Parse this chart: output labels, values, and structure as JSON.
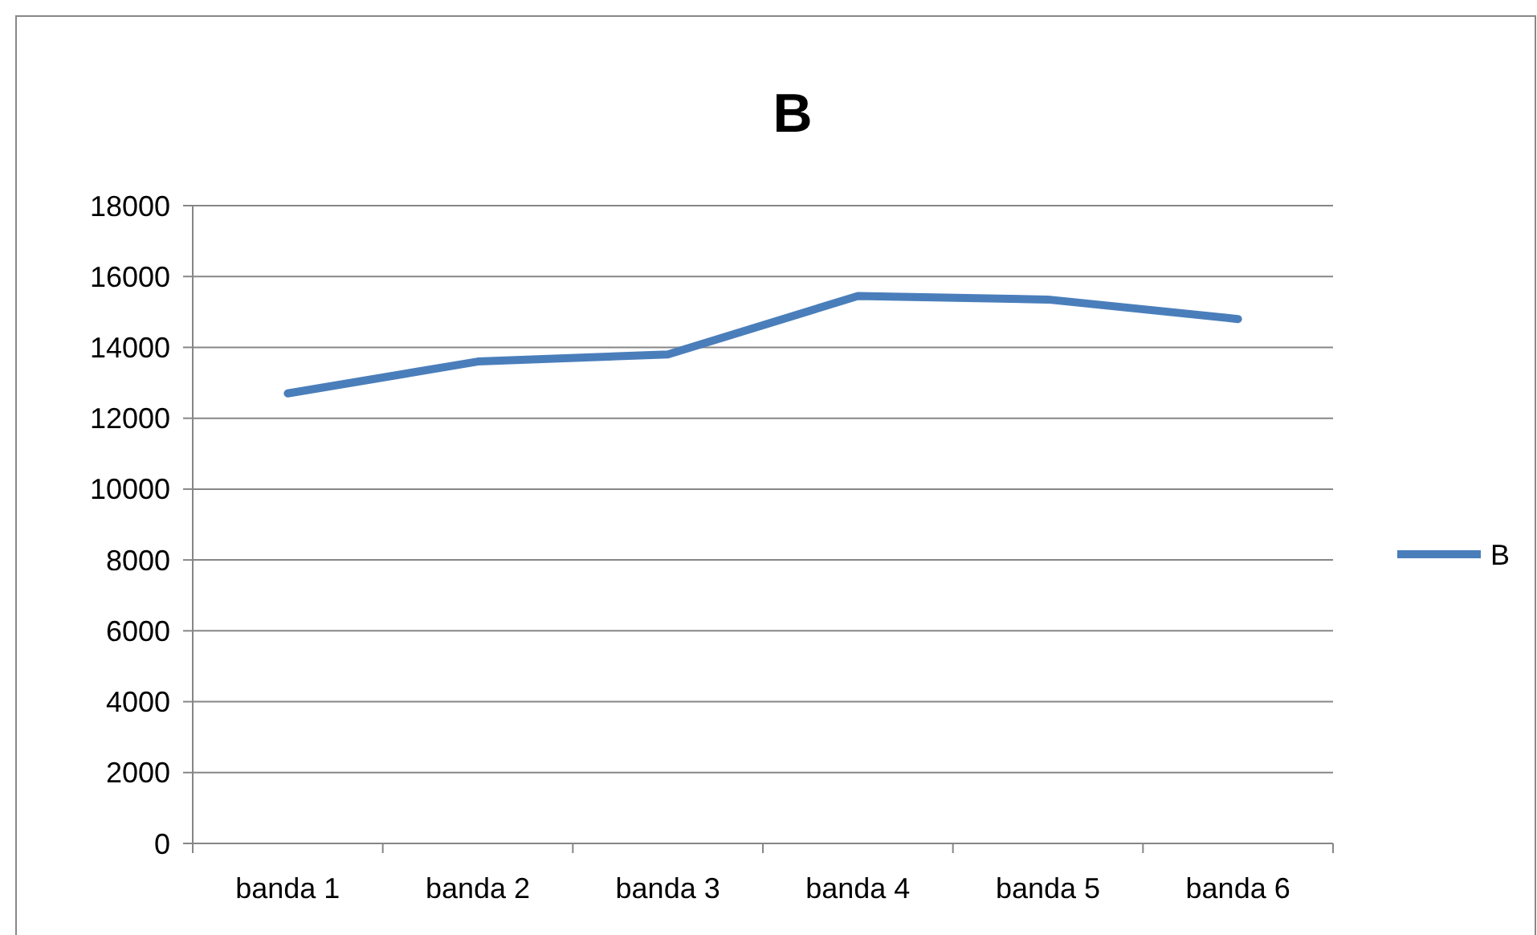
{
  "chart_data": {
    "type": "line",
    "title": "B",
    "categories": [
      "banda 1",
      "banda 2",
      "banda 3",
      "banda 4",
      "banda 5",
      "banda 6"
    ],
    "series": [
      {
        "name": "B",
        "color": "#4a7ebb",
        "values": [
          12700,
          13600,
          13800,
          15450,
          15350,
          14800
        ]
      }
    ],
    "ylim": [
      0,
      18000
    ],
    "yticks": [
      0,
      2000,
      4000,
      6000,
      8000,
      10000,
      12000,
      14000,
      16000,
      18000
    ],
    "grid": "y",
    "legend": "right",
    "marker": "none",
    "line_style": "solid"
  }
}
